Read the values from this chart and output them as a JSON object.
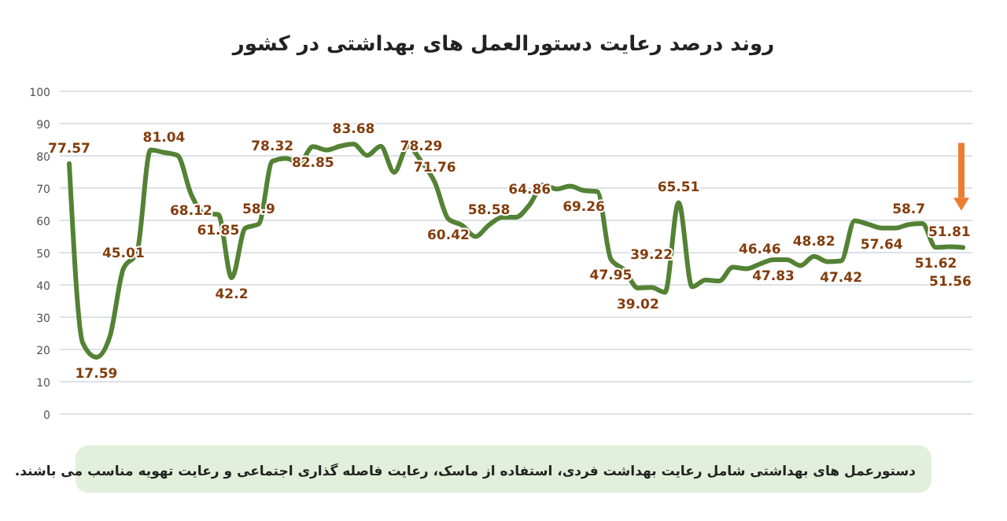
{
  "chart_data": {
    "type": "line",
    "title": "روند درصد رعایت دستورالعمل های بهداشتی در کشور",
    "annotations": [
      "دستورعمل های بهداشتی شامل رعایت بهداشت فردی، استفاده از ماسک، رعایت فاصله گذاری اجتماعی و رعایت تهویه مناسب می باشند."
    ],
    "categories": [
      null,
      null,
      null,
      null,
      null,
      null,
      null,
      null,
      null,
      null,
      null,
      null,
      null,
      null,
      null,
      null,
      null,
      null,
      null,
      null,
      null,
      null,
      null,
      null,
      null,
      null,
      null,
      null,
      null,
      null,
      null,
      null,
      null,
      null,
      null,
      null,
      null,
      null,
      null,
      null,
      null,
      null,
      null,
      null,
      null,
      null,
      null,
      null,
      null,
      null,
      null,
      null,
      null,
      null,
      null,
      null,
      null,
      null,
      null,
      null,
      null,
      null,
      null,
      null,
      null,
      null,
      null
    ],
    "series": [
      {
        "color": "#548235",
        "values": [
          77.57,
          22,
          17.59,
          24,
          45.01,
          50,
          81.8,
          81.04,
          80.1,
          68.12,
          62,
          61.85,
          42.2,
          57.6,
          58.9,
          78.32,
          79.2,
          77.9,
          82.85,
          81.8,
          83,
          83.68,
          80.1,
          83,
          74.9,
          83,
          78.29,
          71.76,
          60.42,
          58.5,
          55,
          58.58,
          61,
          61,
          64.86,
          71,
          69.7,
          70.6,
          69.26,
          68.9,
          47.95,
          44.6,
          39.02,
          39.22,
          37.7,
          65.51,
          39.4,
          41.5,
          41.2,
          45.5,
          45,
          46.46,
          47.83,
          47.8,
          46,
          48.82,
          47.2,
          47.42,
          59.9,
          58.8,
          57.64,
          57.6,
          58.7,
          59,
          51.62,
          51.81,
          51.56
        ],
        "value_labels": [
          "77.57",
          null,
          "17.59",
          null,
          "45.01",
          null,
          null,
          "81.04",
          null,
          "68.12",
          null,
          "61.85",
          "42.2",
          null,
          "58.9",
          "78.32",
          null,
          null,
          "82.85",
          null,
          null,
          "83.68",
          null,
          null,
          null,
          null,
          "78.29",
          "71.76",
          "60.42",
          null,
          null,
          "58.58",
          null,
          null,
          "64.86",
          null,
          null,
          null,
          "69.26",
          null,
          "47.95",
          null,
          "39.02",
          "39.22",
          null,
          "65.51",
          null,
          null,
          null,
          null,
          null,
          "46.46",
          "47.83",
          null,
          null,
          "48.82",
          null,
          "47.42",
          null,
          null,
          "57.64",
          null,
          "58.7",
          null,
          "51.62",
          "51.81",
          "51.56"
        ]
      }
    ],
    "ylim": [
      0,
      100
    ],
    "yticks": [
      0,
      10,
      20,
      30,
      40,
      50,
      60,
      70,
      80,
      90,
      100
    ],
    "grid": "y",
    "tick_labels": "y",
    "marker": "none",
    "line_style": "solid"
  }
}
